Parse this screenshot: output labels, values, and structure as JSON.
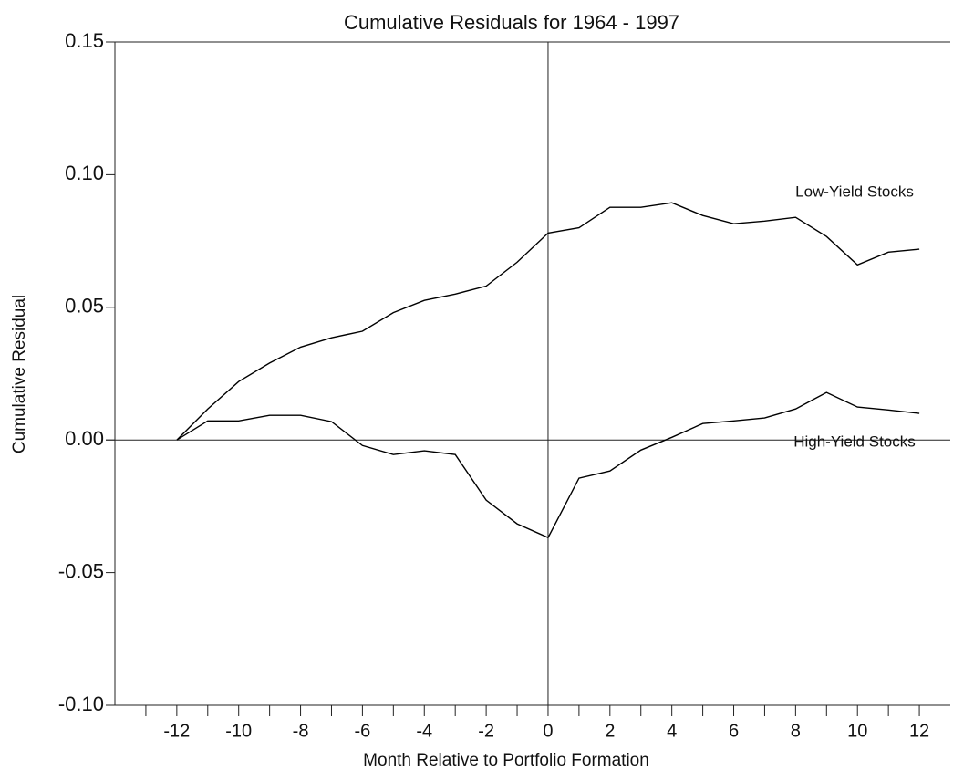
{
  "chart_data": {
    "type": "line",
    "title": "Cumulative Residuals for 1964 - 1997",
    "x_label": "Month Relative to Portfolio Formation",
    "y_label": "Cumulative Residual",
    "x": [
      -12,
      -11,
      -10,
      -9,
      -8,
      -7,
      -6,
      -5,
      -4,
      -3,
      -2,
      -1,
      0,
      1,
      2,
      3,
      4,
      5,
      6,
      7,
      8,
      9,
      10,
      11,
      12
    ],
    "series": [
      {
        "name": "Low-Yield Stocks",
        "color": "#000000",
        "values": [
          0,
          0.0117,
          0.022,
          0.029,
          0.035,
          0.0385,
          0.041,
          0.048,
          0.0526,
          0.055,
          0.058,
          0.067,
          0.078,
          0.08,
          0.0877,
          0.0877,
          0.0894,
          0.0846,
          0.0815,
          0.0825,
          0.0839,
          0.0767,
          0.066,
          0.0708,
          0.0719
        ]
      },
      {
        "name": "High-Yield Stocks",
        "color": "#000000",
        "values": [
          0,
          0.0072,
          0.0072,
          0.0093,
          0.0093,
          0.0069,
          -0.0021,
          -0.0055,
          -0.0041,
          -0.0055,
          -0.0227,
          -0.0316,
          -0.0368,
          -0.0144,
          -0.0117,
          -0.0038,
          0.001,
          0.0062,
          0.0072,
          0.0083,
          0.0117,
          0.0179,
          0.0124,
          0.0113,
          0.01
        ]
      }
    ],
    "xlim": [
      -14,
      13
    ],
    "xticks": [
      -12,
      -10,
      -8,
      -6,
      -4,
      -2,
      0,
      2,
      4,
      6,
      8,
      10,
      12
    ],
    "minor_xticks": [
      -13,
      -11,
      -9,
      -7,
      -5,
      -3,
      -1,
      1,
      3,
      5,
      7,
      9,
      11
    ],
    "ylim": [
      -0.1,
      0.15
    ],
    "yticks": [
      0.15,
      {
        "value": 0.1,
        "label": "0.10"
      },
      0.05,
      {
        "value": 0,
        "label": "0.00"
      },
      -0.05,
      {
        "value": -0.1,
        "label": "-0.10"
      }
    ],
    "zero_lines": true
  }
}
